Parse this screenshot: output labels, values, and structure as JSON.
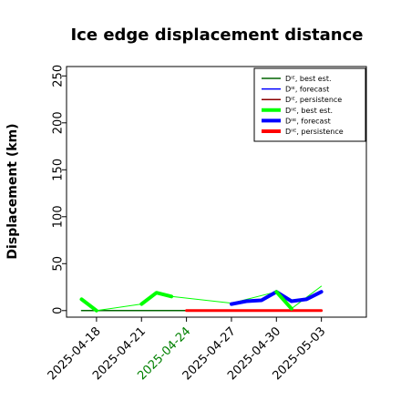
{
  "chart_data": {
    "type": "line",
    "title": "Ice edge displacement distance",
    "ylabel": "Displacement (km)",
    "xlabel": "",
    "ylim": [
      -7,
      260
    ],
    "yticks": [
      0,
      50,
      100,
      150,
      200,
      250
    ],
    "xlim": [
      "2025-04-16",
      "2025-05-06"
    ],
    "xticks": [
      {
        "date": "2025-04-18",
        "label": "2025-04-18",
        "color": "#000000"
      },
      {
        "date": "2025-04-21",
        "label": "2025-04-21",
        "color": "#000000"
      },
      {
        "date": "2025-04-24",
        "label": "2025-04-24",
        "color": "#008000"
      },
      {
        "date": "2025-04-27",
        "label": "2025-04-27",
        "color": "#000000"
      },
      {
        "date": "2025-04-30",
        "label": "2025-04-30",
        "color": "#000000"
      },
      {
        "date": "2025-05-03",
        "label": "2025-05-03",
        "color": "#000000"
      }
    ],
    "grid": false,
    "legend_position": "top-right",
    "series": [
      {
        "name": "Dᴵᴱ, best est.",
        "color": "#006400",
        "width": 1.5,
        "points": [
          [
            "2025-04-17",
            0
          ],
          [
            "2025-04-24",
            0
          ]
        ]
      },
      {
        "name": "Dᴵᴱ, forecast",
        "color": "#0000ff",
        "width": 1.5,
        "points": [
          [
            "2025-04-24",
            0
          ],
          [
            "2025-05-03",
            0
          ]
        ]
      },
      {
        "name": "Dᴵᴱ, persistence",
        "color": "#8b0000",
        "width": 1.5,
        "points": [
          [
            "2025-04-24",
            0
          ],
          [
            "2025-05-03",
            0
          ]
        ]
      },
      {
        "name": "Dᴵᴵᴱ, best est.",
        "color": "#00ff00",
        "width": 1,
        "points": [
          [
            "2025-04-17",
            12
          ],
          [
            "2025-04-18",
            0
          ],
          [
            "2025-04-21",
            7
          ],
          [
            "2025-04-22",
            19
          ],
          [
            "2025-04-23",
            15
          ],
          [
            "2025-04-27",
            8
          ],
          [
            "2025-04-30",
            20
          ],
          [
            "2025-05-01",
            2
          ],
          [
            "2025-05-03",
            26
          ]
        ]
      },
      {
        "name": "Dᴵᴵᴱ, forecast",
        "color": "#0000ff",
        "width": 4,
        "points": [
          [
            "2025-04-27",
            7
          ],
          [
            "2025-04-28",
            10
          ],
          [
            "2025-04-29",
            11
          ],
          [
            "2025-04-30",
            20
          ],
          [
            "2025-05-01",
            10
          ],
          [
            "2025-05-02",
            12
          ],
          [
            "2025-05-03",
            20
          ]
        ]
      },
      {
        "name": "Dᴵᴵᴱ, persistence",
        "color": "#ff0000",
        "width": 3,
        "points": [
          [
            "2025-04-24",
            0
          ],
          [
            "2025-05-03",
            0
          ]
        ]
      }
    ],
    "thick_segments": [
      {
        "series": "Dᴵᴵᴱ, best est.",
        "color": "#00ff00",
        "width": 4,
        "points": [
          [
            "2025-04-17",
            12
          ],
          [
            "2025-04-18",
            0
          ]
        ]
      },
      {
        "series": "Dᴵᴵᴱ, best est.",
        "color": "#00ff00",
        "width": 4,
        "points": [
          [
            "2025-04-21",
            7
          ],
          [
            "2025-04-22",
            19
          ],
          [
            "2025-04-23",
            15
          ]
        ]
      },
      {
        "series": "Dᴵᴵᴱ, best est.",
        "color": "#00ff00",
        "width": 4,
        "points": [
          [
            "2025-04-30",
            20
          ],
          [
            "2025-05-01",
            2
          ]
        ]
      }
    ],
    "legend": [
      {
        "label": "Dᴵᴱ, best est.",
        "color": "#006400",
        "width": 1.5
      },
      {
        "label": "Dᴵᴱ, forecast",
        "color": "#0000ff",
        "width": 1.5
      },
      {
        "label": "Dᴵᴱ, persistence",
        "color": "#8b0000",
        "width": 1.5
      },
      {
        "label": "Dᴵᴵᴱ, best est.",
        "color": "#00ff00",
        "width": 4
      },
      {
        "label": "Dᴵᴵᴱ, forecast",
        "color": "#0000ff",
        "width": 4
      },
      {
        "label": "Dᴵᴵᴱ, persistence",
        "color": "#ff0000",
        "width": 4
      }
    ]
  }
}
